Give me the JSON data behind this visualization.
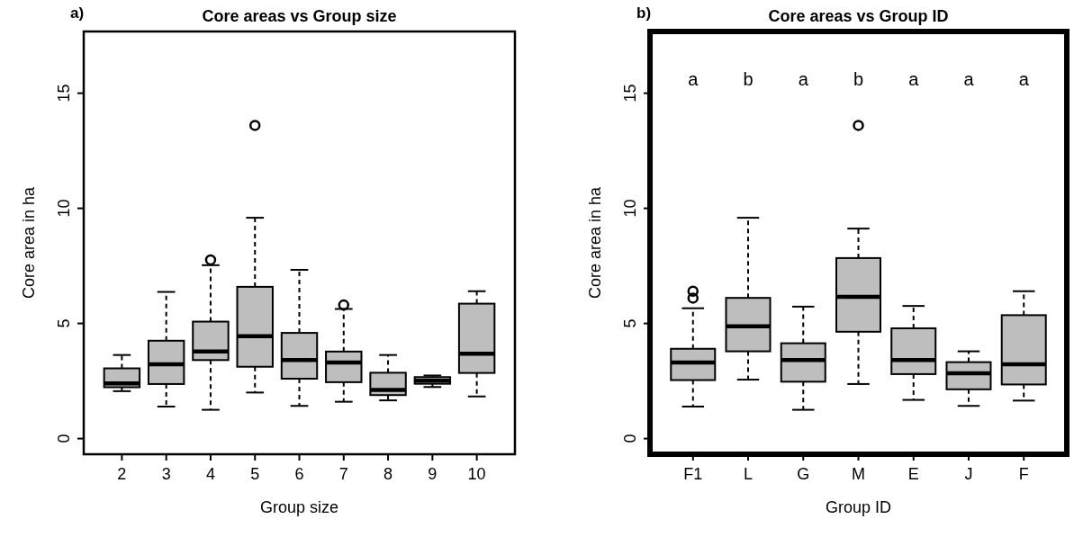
{
  "chart_data": [
    {
      "type": "box",
      "title": "Core areas vs Group size",
      "xlabel": "Group size",
      "ylabel": "Core area in ha",
      "categories": [
        "2",
        "3",
        "4",
        "5",
        "6",
        "7",
        "8",
        "9",
        "10"
      ],
      "color": "#bebebe",
      "ylim": [
        -0.68,
        17.68
      ],
      "yticks": [
        0,
        5,
        10,
        15
      ],
      "grid": false,
      "boxes": [
        {
          "low": 2.06,
          "q1": 2.23,
          "median": 2.4,
          "q3": 3.05,
          "high": 3.63
        },
        {
          "low": 1.39,
          "q1": 2.37,
          "median": 3.23,
          "q3": 4.25,
          "high": 6.37
        },
        {
          "low": 1.25,
          "q1": 3.41,
          "median": 3.78,
          "q3": 5.08,
          "high": 7.53,
          "outliers": [
            7.76
          ]
        },
        {
          "low": 2.0,
          "q1": 3.12,
          "median": 4.45,
          "q3": 6.59,
          "high": 9.59,
          "outliers": [
            13.6
          ]
        },
        {
          "low": 1.42,
          "q1": 2.6,
          "median": 3.41,
          "q3": 4.59,
          "high": 7.33
        },
        {
          "low": 1.6,
          "q1": 2.45,
          "median": 3.3,
          "q3": 3.78,
          "high": 5.63,
          "outliers": [
            5.8
          ]
        },
        {
          "low": 1.66,
          "q1": 1.89,
          "median": 2.11,
          "q3": 2.86,
          "high": 3.63
        },
        {
          "low": 2.24,
          "q1": 2.38,
          "median": 2.51,
          "q3": 2.67,
          "high": 2.74
        },
        {
          "low": 1.83,
          "q1": 2.85,
          "median": 3.69,
          "q3": 5.86,
          "high": 6.4
        }
      ],
      "annotations": [
        "a)"
      ]
    },
    {
      "type": "box",
      "title": "Core areas vs Group ID",
      "xlabel": "Group ID",
      "ylabel": "Core area in ha",
      "categories": [
        "F1",
        "L",
        "G",
        "M",
        "E",
        "J",
        "F"
      ],
      "color": "#bebebe",
      "ylim": [
        -0.68,
        17.68
      ],
      "yticks": [
        0,
        5,
        10,
        15
      ],
      "grid": false,
      "boxes": [
        {
          "low": 1.39,
          "q1": 2.54,
          "median": 3.3,
          "q3": 3.9,
          "high": 5.66,
          "outliers": [
            6.1,
            6.4
          ]
        },
        {
          "low": 2.56,
          "q1": 3.79,
          "median": 4.88,
          "q3": 6.11,
          "high": 9.59
        },
        {
          "low": 1.25,
          "q1": 2.47,
          "median": 3.41,
          "q3": 4.14,
          "high": 5.73
        },
        {
          "low": 2.37,
          "q1": 4.64,
          "median": 6.16,
          "q3": 7.84,
          "high": 9.12,
          "outliers": [
            13.6
          ]
        },
        {
          "low": 1.68,
          "q1": 2.8,
          "median": 3.41,
          "q3": 4.79,
          "high": 5.76
        },
        {
          "low": 1.42,
          "q1": 2.14,
          "median": 2.84,
          "q3": 3.32,
          "high": 3.79
        },
        {
          "low": 1.65,
          "q1": 2.35,
          "median": 3.23,
          "q3": 5.36,
          "high": 6.4
        }
      ],
      "annotations": [
        "b)",
        "a",
        "b",
        "a",
        "b",
        "a",
        "a",
        "a"
      ]
    }
  ]
}
